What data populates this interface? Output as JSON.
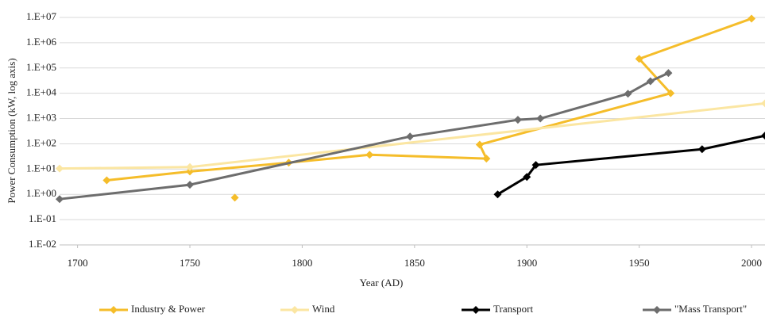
{
  "chart_data": {
    "type": "line",
    "x_label": "Year (AD)",
    "y_label": "Power Consumption (kW, log axis)",
    "log_y": true,
    "grid": true,
    "legend": "bottom",
    "xlim": [
      1692,
      2006
    ],
    "xticks": [
      1700,
      1750,
      1800,
      1850,
      1900,
      1950,
      2000
    ],
    "ylim": [
      0.01,
      10000000
    ],
    "yticks": [
      {
        "value": 0.01,
        "label": "1.E-02"
      },
      {
        "value": 0.1,
        "label": "1.E-01"
      },
      {
        "value": 1,
        "label": "1.E+00"
      },
      {
        "value": 10,
        "label": "1.E+01"
      },
      {
        "value": 100,
        "label": "1.E+02"
      },
      {
        "value": 1000,
        "label": "1.E+03"
      },
      {
        "value": 10000,
        "label": "1.E+04"
      },
      {
        "value": 100000,
        "label": "1.E+05"
      },
      {
        "value": 1000000,
        "label": "1.E+06"
      },
      {
        "value": 10000000,
        "label": "1.E+07"
      }
    ],
    "series": [
      {
        "name": "Industry & Power",
        "color": "#f5bd2a",
        "x": [
          1770,
          1770,
          1713,
          1750,
          1794,
          1830,
          1882,
          1879,
          1964,
          1950,
          2000
        ],
        "values": [
          0.74,
          null,
          3.6,
          8,
          18,
          37,
          26,
          93,
          10000,
          230000,
          9000000
        ]
      },
      {
        "name": "Wind",
        "color": "#fbe6a2",
        "x": [
          1692,
          1750,
          2006
        ],
        "values": [
          10.5,
          12,
          4000
        ]
      },
      {
        "name": "Transport",
        "color": "#000000",
        "x": [
          1887,
          1900,
          1904,
          1978,
          2006
        ],
        "values": [
          1,
          4.9,
          14.5,
          61,
          210
        ]
      },
      {
        "name": "\"Mass Transport\"",
        "color": "#6d6d6d",
        "x": [
          1692,
          1750,
          1848,
          1896,
          1906,
          1945,
          1955,
          1963
        ],
        "values": [
          0.65,
          2.4,
          195,
          890,
          1000,
          9600,
          30000,
          63000
        ]
      }
    ]
  }
}
